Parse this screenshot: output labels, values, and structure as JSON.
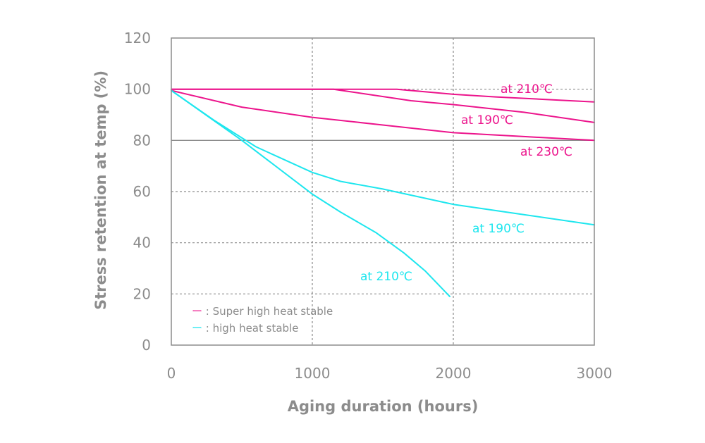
{
  "chart_data": {
    "type": "line",
    "xlabel": "Aging duration (hours)",
    "ylabel": "Stress retention at temp (%)",
    "xlim": [
      0,
      3000
    ],
    "ylim": [
      0,
      120
    ],
    "x_ticks": [
      "0",
      "1000",
      "2000",
      "3000"
    ],
    "y_ticks": [
      "0",
      "20",
      "40",
      "60",
      "80",
      "100",
      "120"
    ],
    "colors": {
      "super_high_heat_stable": "#ec148c",
      "high_heat_stable": "#1ee6ee",
      "axis": "#8c8c8c"
    },
    "legend": {
      "position": "bottom-left",
      "items": [
        {
          "label": "ー : Super  high heat stable",
          "color": "#ec148c"
        },
        {
          "label": "ー : high heat stable",
          "color": "#1ee6ee"
        }
      ]
    },
    "series": [
      {
        "label": "at 210℃",
        "group": "super_high_heat_stable",
        "color": "#ec148c",
        "x": [
          0,
          1600,
          2000,
          2300,
          3000
        ],
        "y": [
          100,
          100,
          98,
          97,
          95
        ]
      },
      {
        "label": "at 190℃",
        "group": "super_high_heat_stable",
        "color": "#ec148c",
        "x": [
          0,
          1150,
          1700,
          2000,
          2500,
          3000
        ],
        "y": [
          100,
          100,
          95.5,
          94,
          91,
          87
        ]
      },
      {
        "label": "at 230℃",
        "group": "super_high_heat_stable",
        "color": "#ec148c",
        "x": [
          0,
          500,
          1000,
          1500,
          2000,
          2500,
          3000
        ],
        "y": [
          99.5,
          93,
          89,
          86,
          83,
          81.5,
          80
        ]
      },
      {
        "label": "at 190℃",
        "group": "high_heat_stable",
        "color": "#1ee6ee",
        "x": [
          0,
          300,
          600,
          1000,
          1200,
          1500,
          2000,
          2500,
          3000
        ],
        "y": [
          99.5,
          88,
          77.5,
          67.5,
          64,
          61,
          55,
          51,
          47
        ]
      },
      {
        "label": "at 210℃",
        "group": "high_heat_stable",
        "color": "#1ee6ee",
        "x": [
          0,
          500,
          1000,
          1200,
          1450,
          1650,
          1800,
          1975
        ],
        "y": [
          99.5,
          80,
          59,
          52,
          44,
          36,
          29,
          19
        ]
      }
    ]
  }
}
